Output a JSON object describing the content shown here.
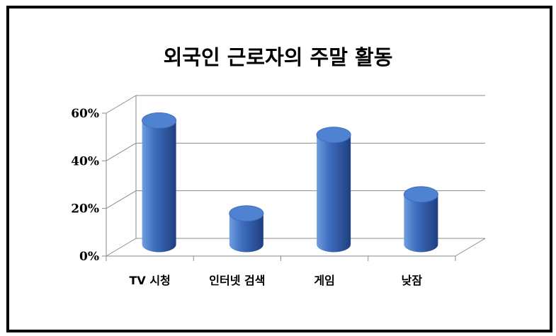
{
  "chart_data": {
    "type": "bar",
    "title": "외국인 근로자의 주말 활동",
    "categories": [
      "TV 시청",
      "인터넷 검색",
      "게임",
      "낮잠"
    ],
    "values": [
      52,
      13,
      46,
      21
    ],
    "unit": "%",
    "ylim": [
      0,
      60
    ],
    "yticks": [
      0,
      20,
      40,
      60
    ],
    "ytick_labels": [
      "0%",
      "20%",
      "40%",
      "60%"
    ],
    "grid": true,
    "legend": "none",
    "style": "3d-cylinder",
    "colors": {
      "bar_light": "#6f9ee0",
      "bar_mid": "#3f6fbf",
      "bar_dark": "#1f3f80",
      "bar_top": "#4f82d0",
      "grid": "#8a8a8a",
      "frame": "#000000"
    }
  }
}
